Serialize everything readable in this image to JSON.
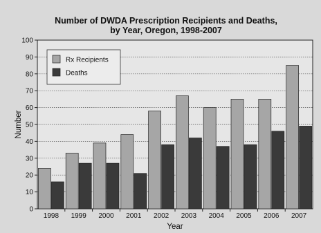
{
  "chart_data": {
    "type": "bar",
    "title": "Number of DWDA Prescription Recipients and Deaths,",
    "subtitle": "by Year, Oregon, 1998-2007",
    "xlabel": "Year",
    "ylabel": "Number",
    "ylim": [
      0,
      100
    ],
    "yticks": [
      "0",
      "10",
      "20",
      "30",
      "40",
      "50",
      "60",
      "70",
      "80",
      "90",
      "100"
    ],
    "grid": true,
    "legend_position": "top-left",
    "categories": [
      "1998",
      "1999",
      "2000",
      "2001",
      "2002",
      "2003",
      "2004",
      "2005",
      "2006",
      "2007"
    ],
    "series": [
      {
        "name": "Rx Recipients",
        "color": "#a6a6a6",
        "values": [
          24,
          33,
          39,
          44,
          58,
          67,
          60,
          65,
          65,
          85
        ]
      },
      {
        "name": "Deaths",
        "color": "#3a3a3a",
        "values": [
          16,
          27,
          27,
          21,
          38,
          42,
          37,
          38,
          46,
          49
        ]
      }
    ]
  }
}
